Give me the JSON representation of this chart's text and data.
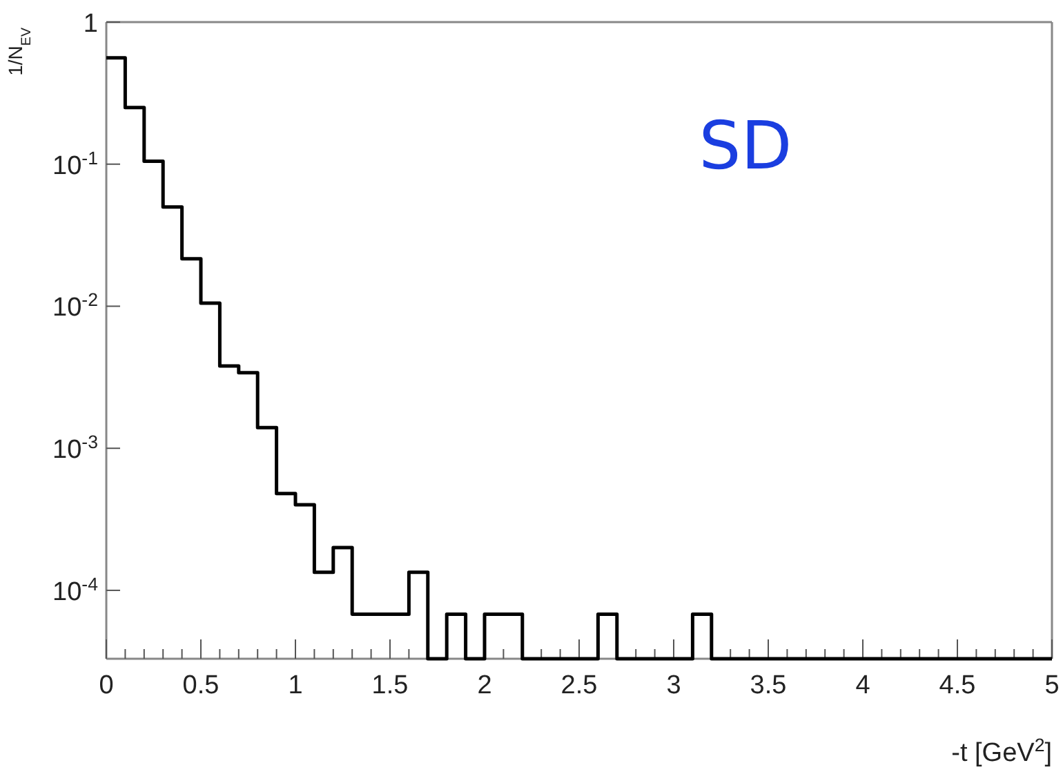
{
  "chart_data": {
    "type": "histogram",
    "xlabel": "-t  [GeV$^{2}$]",
    "ylabel": "1/N$_{EV}$",
    "annotations": [
      "SD"
    ],
    "color": "#000000",
    "log": true,
    "grid": false,
    "bins": [
      0,
      0.1,
      0.2,
      0.3,
      0.4,
      0.5,
      0.6,
      0.7,
      0.8,
      0.9,
      1.0,
      1.1,
      1.2,
      1.3,
      1.4,
      1.5,
      1.6,
      1.7,
      1.8,
      1.9,
      2.0,
      2.1,
      2.2,
      2.3,
      2.4,
      2.5,
      2.6,
      2.7,
      2.8,
      2.9,
      3.0,
      3.1,
      3.2,
      3.3,
      3.4,
      3.5,
      3.6,
      3.7,
      3.8,
      3.9,
      4.0,
      4.1,
      4.2,
      4.3,
      4.4,
      4.5,
      4.6,
      4.7,
      4.8,
      4.9,
      5.0
    ],
    "values": [
      0.56,
      0.25,
      0.105,
      0.05,
      0.0216,
      0.0105,
      0.0038,
      0.0034,
      0.0014,
      0.00048,
      0.0004,
      0.000134,
      0.0002,
      6.8e-05,
      6.8e-05,
      6.8e-05,
      0.000134,
      null,
      6.8e-05,
      null,
      6.8e-05,
      6.8e-05,
      null,
      null,
      null,
      null,
      6.8e-05,
      null,
      null,
      null,
      null,
      6.8e-05,
      null,
      null,
      null,
      null,
      null,
      null,
      null,
      null,
      null,
      null,
      null,
      null,
      null,
      null,
      null,
      null,
      null,
      null
    ],
    "xlim": [
      0,
      5
    ],
    "ylim": [
      3.3e-05,
      1
    ],
    "xticks": [
      0,
      {
        "value": 0.1,
        "label": null
      },
      {
        "value": 0.2,
        "label": null
      },
      {
        "value": 0.3,
        "label": null
      },
      {
        "value": 0.4,
        "label": null
      },
      0.5,
      {
        "value": 0.6,
        "label": null
      },
      {
        "value": 0.7,
        "label": null
      },
      {
        "value": 0.8,
        "label": null
      },
      {
        "value": 0.9,
        "label": null
      },
      1,
      {
        "value": 1.1,
        "label": null
      },
      {
        "value": 1.2,
        "label": null
      },
      {
        "value": 1.3,
        "label": null
      },
      {
        "value": 1.4,
        "label": null
      },
      1.5,
      {
        "value": 1.6,
        "label": null
      },
      {
        "value": 1.7,
        "label": null
      },
      {
        "value": 1.8,
        "label": null
      },
      {
        "value": 1.9,
        "label": null
      },
      2,
      {
        "value": 2.1,
        "label": null
      },
      {
        "value": 2.2,
        "label": null
      },
      {
        "value": 2.3,
        "label": null
      },
      {
        "value": 2.4,
        "label": null
      },
      2.5,
      {
        "value": 2.6,
        "label": null
      },
      {
        "value": 2.7,
        "label": null
      },
      {
        "value": 2.8,
        "label": null
      },
      {
        "value": 2.9,
        "label": null
      },
      3,
      {
        "value": 3.1,
        "label": null
      },
      {
        "value": 3.2,
        "label": null
      },
      {
        "value": 3.3,
        "label": null
      },
      {
        "value": 3.4,
        "label": null
      },
      3.5,
      {
        "value": 3.6,
        "label": null
      },
      {
        "value": 3.7,
        "label": null
      },
      {
        "value": 3.8,
        "label": null
      },
      {
        "value": 3.9,
        "label": null
      },
      4,
      {
        "value": 4.1,
        "label": null
      },
      {
        "value": 4.2,
        "label": null
      },
      {
        "value": 4.3,
        "label": null
      },
      {
        "value": 4.4,
        "label": null
      },
      4.5,
      {
        "value": 4.6,
        "label": null
      },
      {
        "value": 4.7,
        "label": null
      },
      {
        "value": 4.8,
        "label": null
      },
      {
        "value": 4.9,
        "label": null
      },
      5
    ],
    "yticks": [
      {
        "value": 0.0001,
        "label": "10$^{-4}$"
      },
      {
        "value": 0.001,
        "label": "10$^{-3}$"
      },
      {
        "value": 0.01,
        "label": "10$^{-2}$"
      },
      {
        "value": 0.1,
        "label": "10$^{-1}$"
      },
      1
    ]
  }
}
